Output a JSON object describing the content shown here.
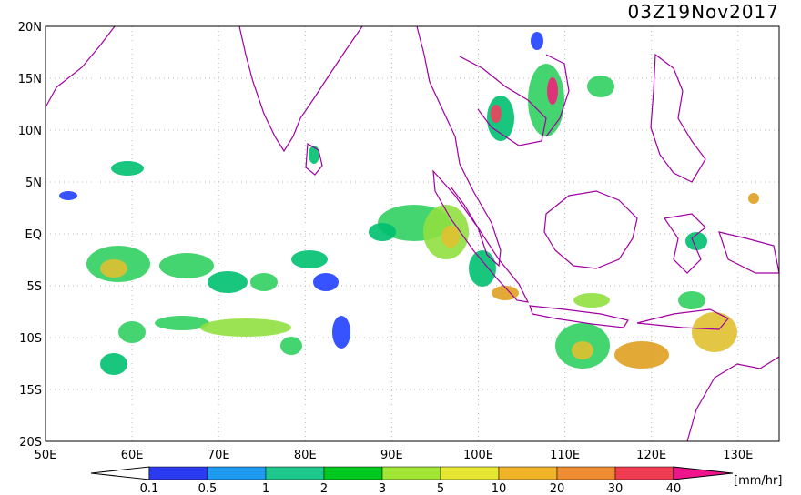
{
  "title": "03Z19Nov2017",
  "lat_labels": [
    "20N",
    "15N",
    "10N",
    "5N",
    "EQ",
    "5S",
    "10S",
    "15S",
    "20S"
  ],
  "lon_labels": [
    "50E",
    "60E",
    "70E",
    "80E",
    "90E",
    "100E",
    "110E",
    "120E",
    "130E"
  ],
  "colorbar": {
    "levels": [
      "0.1",
      "0.5",
      "1",
      "2",
      "3",
      "5",
      "10",
      "20",
      "30",
      "40"
    ],
    "unit": "[mm/hr]"
  }
}
